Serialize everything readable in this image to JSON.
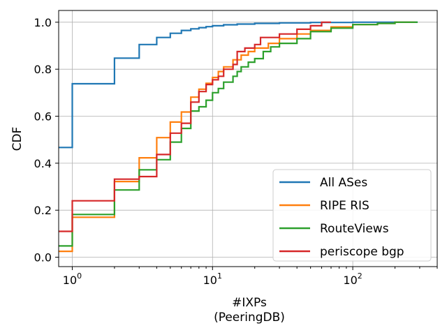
{
  "chart_data": {
    "type": "line",
    "xscale": "log",
    "xlim": [
      0.8,
      400
    ],
    "ylim": [
      -0.04,
      1.05
    ],
    "xlabel_line1": "#IXPs",
    "xlabel_line2": "(PeeringDB)",
    "ylabel": "CDF",
    "grid": true,
    "legend_position": "lower-right",
    "x_ticks": [
      {
        "value": 1,
        "base": "10",
        "exp": "0"
      },
      {
        "value": 10,
        "base": "10",
        "exp": "1"
      },
      {
        "value": 100,
        "base": "10",
        "exp": "2"
      }
    ],
    "y_ticks": [
      {
        "value": 0.0,
        "label": "0.0"
      },
      {
        "value": 0.2,
        "label": "0.2"
      },
      {
        "value": 0.4,
        "label": "0.4"
      },
      {
        "value": 0.6,
        "label": "0.6"
      },
      {
        "value": 0.8,
        "label": "0.8"
      },
      {
        "value": 1.0,
        "label": "1.0"
      }
    ],
    "series": [
      {
        "name": "All ASes",
        "color": "#1f77b4",
        "points": [
          [
            0.8,
            0.467
          ],
          [
            1,
            0.467
          ],
          [
            1,
            0.738
          ],
          [
            2,
            0.738
          ],
          [
            2,
            0.847
          ],
          [
            3,
            0.847
          ],
          [
            3,
            0.905
          ],
          [
            4,
            0.905
          ],
          [
            4,
            0.935
          ],
          [
            5,
            0.935
          ],
          [
            5,
            0.953
          ],
          [
            6,
            0.953
          ],
          [
            6,
            0.965
          ],
          [
            7,
            0.965
          ],
          [
            7,
            0.972
          ],
          [
            8,
            0.972
          ],
          [
            8,
            0.977
          ],
          [
            9,
            0.977
          ],
          [
            9,
            0.981
          ],
          [
            10,
            0.981
          ],
          [
            10,
            0.985
          ],
          [
            12,
            0.985
          ],
          [
            12,
            0.989
          ],
          [
            15,
            0.989
          ],
          [
            15,
            0.992
          ],
          [
            20,
            0.992
          ],
          [
            20,
            0.995
          ],
          [
            30,
            0.995
          ],
          [
            30,
            0.997
          ],
          [
            50,
            0.997
          ],
          [
            50,
            0.999
          ],
          [
            100,
            0.999
          ],
          [
            100,
            1.0
          ],
          [
            290,
            1.0
          ]
        ]
      },
      {
        "name": "RIPE RIS",
        "color": "#ff7f0e",
        "points": [
          [
            0.8,
            0.025
          ],
          [
            1,
            0.025
          ],
          [
            1,
            0.17
          ],
          [
            2,
            0.17
          ],
          [
            2,
            0.322
          ],
          [
            3,
            0.322
          ],
          [
            3,
            0.423
          ],
          [
            4,
            0.423
          ],
          [
            4,
            0.509
          ],
          [
            5,
            0.509
          ],
          [
            5,
            0.575
          ],
          [
            6,
            0.575
          ],
          [
            6,
            0.618
          ],
          [
            7,
            0.618
          ],
          [
            7,
            0.681
          ],
          [
            8,
            0.681
          ],
          [
            8,
            0.715
          ],
          [
            9,
            0.715
          ],
          [
            9,
            0.74
          ],
          [
            10,
            0.74
          ],
          [
            10,
            0.765
          ],
          [
            11,
            0.765
          ],
          [
            11,
            0.79
          ],
          [
            12,
            0.79
          ],
          [
            12,
            0.81
          ],
          [
            14,
            0.81
          ],
          [
            14,
            0.84
          ],
          [
            16,
            0.84
          ],
          [
            16,
            0.86
          ],
          [
            18,
            0.86
          ],
          [
            18,
            0.875
          ],
          [
            20,
            0.875
          ],
          [
            20,
            0.89
          ],
          [
            25,
            0.89
          ],
          [
            25,
            0.91
          ],
          [
            30,
            0.91
          ],
          [
            30,
            0.93
          ],
          [
            40,
            0.93
          ],
          [
            40,
            0.95
          ],
          [
            50,
            0.95
          ],
          [
            50,
            0.965
          ],
          [
            70,
            0.965
          ],
          [
            70,
            0.98
          ],
          [
            100,
            0.98
          ],
          [
            100,
            0.99
          ],
          [
            150,
            0.99
          ],
          [
            150,
            0.995
          ],
          [
            200,
            0.995
          ],
          [
            200,
            1.0
          ],
          [
            280,
            1.0
          ]
        ]
      },
      {
        "name": "RouteViews",
        "color": "#2ca02c",
        "points": [
          [
            0.8,
            0.048
          ],
          [
            1,
            0.048
          ],
          [
            1,
            0.182
          ],
          [
            2,
            0.182
          ],
          [
            2,
            0.286
          ],
          [
            3,
            0.286
          ],
          [
            3,
            0.372
          ],
          [
            4,
            0.372
          ],
          [
            4,
            0.415
          ],
          [
            5,
            0.415
          ],
          [
            5,
            0.49
          ],
          [
            6,
            0.49
          ],
          [
            6,
            0.548
          ],
          [
            7,
            0.548
          ],
          [
            7,
            0.622
          ],
          [
            8,
            0.622
          ],
          [
            8,
            0.64
          ],
          [
            9,
            0.64
          ],
          [
            9,
            0.668
          ],
          [
            10,
            0.668
          ],
          [
            10,
            0.7
          ],
          [
            11,
            0.7
          ],
          [
            11,
            0.718
          ],
          [
            12,
            0.718
          ],
          [
            12,
            0.745
          ],
          [
            14,
            0.745
          ],
          [
            14,
            0.77
          ],
          [
            15,
            0.77
          ],
          [
            15,
            0.79
          ],
          [
            16,
            0.79
          ],
          [
            16,
            0.81
          ],
          [
            18,
            0.81
          ],
          [
            18,
            0.83
          ],
          [
            20,
            0.83
          ],
          [
            20,
            0.845
          ],
          [
            23,
            0.845
          ],
          [
            23,
            0.875
          ],
          [
            26,
            0.875
          ],
          [
            26,
            0.895
          ],
          [
            30,
            0.895
          ],
          [
            30,
            0.91
          ],
          [
            40,
            0.91
          ],
          [
            40,
            0.93
          ],
          [
            50,
            0.93
          ],
          [
            50,
            0.96
          ],
          [
            70,
            0.96
          ],
          [
            70,
            0.975
          ],
          [
            100,
            0.975
          ],
          [
            100,
            0.99
          ],
          [
            150,
            0.99
          ],
          [
            150,
            0.995
          ],
          [
            200,
            0.995
          ],
          [
            200,
            1.0
          ],
          [
            290,
            1.0
          ]
        ]
      },
      {
        "name": "periscope bgp",
        "color": "#d62728",
        "points": [
          [
            0.8,
            0.11
          ],
          [
            1,
            0.11
          ],
          [
            1,
            0.24
          ],
          [
            2,
            0.24
          ],
          [
            2,
            0.332
          ],
          [
            3,
            0.332
          ],
          [
            3,
            0.343
          ],
          [
            4,
            0.343
          ],
          [
            4,
            0.437
          ],
          [
            5,
            0.437
          ],
          [
            5,
            0.528
          ],
          [
            6,
            0.528
          ],
          [
            6,
            0.57
          ],
          [
            7,
            0.57
          ],
          [
            7,
            0.66
          ],
          [
            8,
            0.66
          ],
          [
            8,
            0.705
          ],
          [
            9,
            0.705
          ],
          [
            9,
            0.735
          ],
          [
            10,
            0.735
          ],
          [
            10,
            0.755
          ],
          [
            11,
            0.755
          ],
          [
            11,
            0.77
          ],
          [
            12,
            0.77
          ],
          [
            12,
            0.8
          ],
          [
            14,
            0.8
          ],
          [
            14,
            0.82
          ],
          [
            15,
            0.82
          ],
          [
            15,
            0.875
          ],
          [
            17,
            0.875
          ],
          [
            17,
            0.89
          ],
          [
            20,
            0.89
          ],
          [
            20,
            0.905
          ],
          [
            22,
            0.905
          ],
          [
            22,
            0.935
          ],
          [
            30,
            0.935
          ],
          [
            30,
            0.95
          ],
          [
            40,
            0.95
          ],
          [
            40,
            0.97
          ],
          [
            50,
            0.97
          ],
          [
            50,
            0.985
          ],
          [
            60,
            0.985
          ],
          [
            60,
            1.0
          ],
          [
            70,
            1.0
          ]
        ]
      }
    ]
  }
}
